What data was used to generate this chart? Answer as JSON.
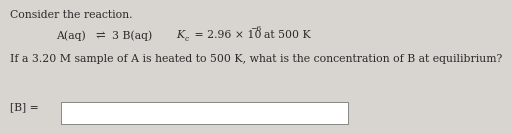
{
  "background_color": "#d8d5d0",
  "text_color": "#2a2a2a",
  "white_box_color": "#ffffff",
  "title": "Consider the reaction.",
  "reaction_left": "A(aq)",
  "reaction_arrow": "⇌",
  "reaction_right": "3 B(aq)",
  "kc_main": "K",
  "kc_sub": "c",
  "kc_equals": " = 2.96 × 10",
  "kc_exp": "−6",
  "kc_temp": "at 500 K",
  "question": "If a 3.20 M sample of A is heated to 500 K, what is the concentration of B at equilibrium?",
  "answer_label": "[B] =",
  "fontsize_main": 7.8,
  "fontsize_small": 5.5,
  "fontfamily": "DejaVu Serif"
}
